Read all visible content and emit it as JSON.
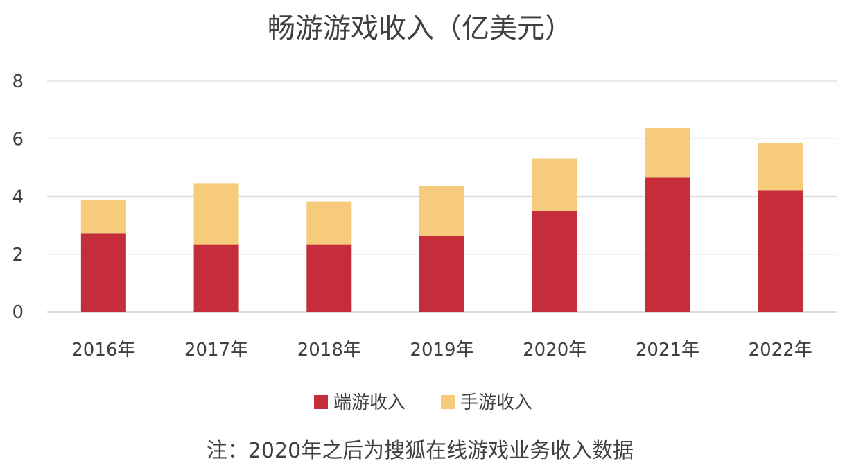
{
  "chart_data": {
    "type": "bar",
    "stacked": true,
    "title": "畅游游戏收入（亿美元）",
    "categories": [
      "2016年",
      "2017年",
      "2018年",
      "2019年",
      "2020年",
      "2021年",
      "2022年"
    ],
    "series": [
      {
        "name": "端游收入",
        "color": "#c52d3a",
        "values": [
          2.73,
          2.34,
          2.34,
          2.63,
          3.5,
          4.65,
          4.22
        ]
      },
      {
        "name": "手游收入",
        "color": "#f6cb7c",
        "values": [
          1.15,
          2.12,
          1.49,
          1.72,
          1.82,
          1.72,
          1.63
        ]
      }
    ],
    "yticks": [
      0,
      2,
      4,
      6,
      8
    ],
    "ylim": [
      0,
      8
    ],
    "grid": true,
    "legend": "bottom",
    "xlabel": "",
    "ylabel": "",
    "note": "注：2020年之后为搜狐在线游戏业务收入数据"
  }
}
